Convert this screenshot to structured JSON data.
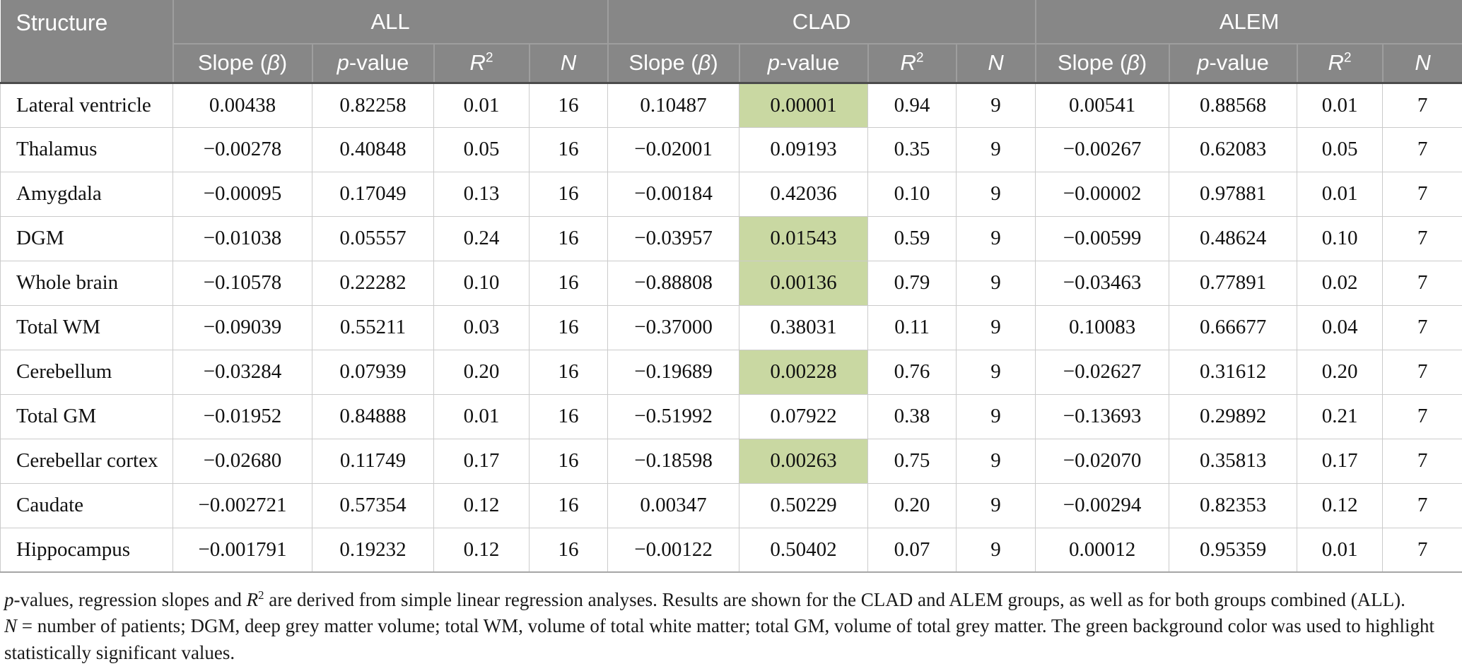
{
  "table": {
    "structure_header": "Structure",
    "groups": [
      "ALL",
      "CLAD",
      "ALEM"
    ],
    "subheaders": {
      "slope": [
        {
          "text": "Slope ("
        },
        {
          "text": "β",
          "style": "italic"
        },
        {
          "text": ")"
        }
      ],
      "p_value": [
        {
          "text": "p",
          "style": "italic"
        },
        {
          "text": "-value"
        }
      ],
      "r_squared": [
        {
          "text": "R",
          "style": "italic"
        },
        {
          "text": "2",
          "style": "sup"
        }
      ],
      "n": [
        {
          "text": "N",
          "style": "italic"
        }
      ]
    },
    "rows": [
      {
        "structure": "Lateral ventricle",
        "values": [
          "0.00438",
          "0.82258",
          "0.01",
          "16",
          "0.10487",
          "0.00001",
          "0.94",
          "9",
          "0.00541",
          "0.88568",
          "0.01",
          "7"
        ],
        "highlight": [
          5
        ]
      },
      {
        "structure": "Thalamus",
        "values": [
          "−0.00278",
          "0.40848",
          "0.05",
          "16",
          "−0.02001",
          "0.09193",
          "0.35",
          "9",
          "−0.00267",
          "0.62083",
          "0.05",
          "7"
        ],
        "highlight": []
      },
      {
        "structure": "Amygdala",
        "values": [
          "−0.00095",
          "0.17049",
          "0.13",
          "16",
          "−0.00184",
          "0.42036",
          "0.10",
          "9",
          "−0.00002",
          "0.97881",
          "0.01",
          "7"
        ],
        "highlight": []
      },
      {
        "structure": "DGM",
        "values": [
          "−0.01038",
          "0.05557",
          "0.24",
          "16",
          "−0.03957",
          "0.01543",
          "0.59",
          "9",
          "−0.00599",
          "0.48624",
          "0.10",
          "7"
        ],
        "highlight": [
          5
        ]
      },
      {
        "structure": "Whole brain",
        "values": [
          "−0.10578",
          "0.22282",
          "0.10",
          "16",
          "−0.88808",
          "0.00136",
          "0.79",
          "9",
          "−0.03463",
          "0.77891",
          "0.02",
          "7"
        ],
        "highlight": [
          5
        ]
      },
      {
        "structure": "Total WM",
        "values": [
          "−0.09039",
          "0.55211",
          "0.03",
          "16",
          "−0.37000",
          "0.38031",
          "0.11",
          "9",
          "0.10083",
          "0.66677",
          "0.04",
          "7"
        ],
        "highlight": []
      },
      {
        "structure": "Cerebellum",
        "values": [
          "−0.03284",
          "0.07939",
          "0.20",
          "16",
          "−0.19689",
          "0.00228",
          "0.76",
          "9",
          "−0.02627",
          "0.31612",
          "0.20",
          "7"
        ],
        "highlight": [
          5
        ]
      },
      {
        "structure": "Total GM",
        "values": [
          "−0.01952",
          "0.84888",
          "0.01",
          "16",
          "−0.51992",
          "0.07922",
          "0.38",
          "9",
          "−0.13693",
          "0.29892",
          "0.21",
          "7"
        ],
        "highlight": []
      },
      {
        "structure": "Cerebellar cortex",
        "values": [
          "−0.02680",
          "0.11749",
          "0.17",
          "16",
          "−0.18598",
          "0.00263",
          "0.75",
          "9",
          "−0.02070",
          "0.35813",
          "0.17",
          "7"
        ],
        "highlight": [
          5
        ]
      },
      {
        "structure": "Caudate",
        "values": [
          "−0.002721",
          "0.57354",
          "0.12",
          "16",
          "0.00347",
          "0.50229",
          "0.20",
          "9",
          "−0.00294",
          "0.82353",
          "0.12",
          "7"
        ],
        "highlight": []
      },
      {
        "structure": "Hippocampus",
        "values": [
          "−0.001791",
          "0.19232",
          "0.12",
          "16",
          "−0.00122",
          "0.50402",
          "0.07",
          "9",
          "0.00012",
          "0.95359",
          "0.01",
          "7"
        ],
        "highlight": []
      }
    ]
  },
  "colors": {
    "header_bg": "#878787",
    "significant_bg": "#c9d8a2"
  },
  "footnotes": [
    [
      {
        "text": "p",
        "style": "italic"
      },
      {
        "text": "-values, regression slopes and "
      },
      {
        "text": "R",
        "style": "italic"
      },
      {
        "text": "2",
        "style": "sup"
      },
      {
        "text": " are derived from simple linear regression analyses. Results are shown for the CLAD and ALEM groups, as well as for both groups combined (ALL)."
      }
    ],
    [
      {
        "text": "N",
        "style": "italic"
      },
      {
        "text": " = number of patients; DGM, deep grey matter volume; total WM, volume of total white matter; total GM, volume of total grey matter. The green background color was used to highlight statistically significant values."
      }
    ]
  ]
}
